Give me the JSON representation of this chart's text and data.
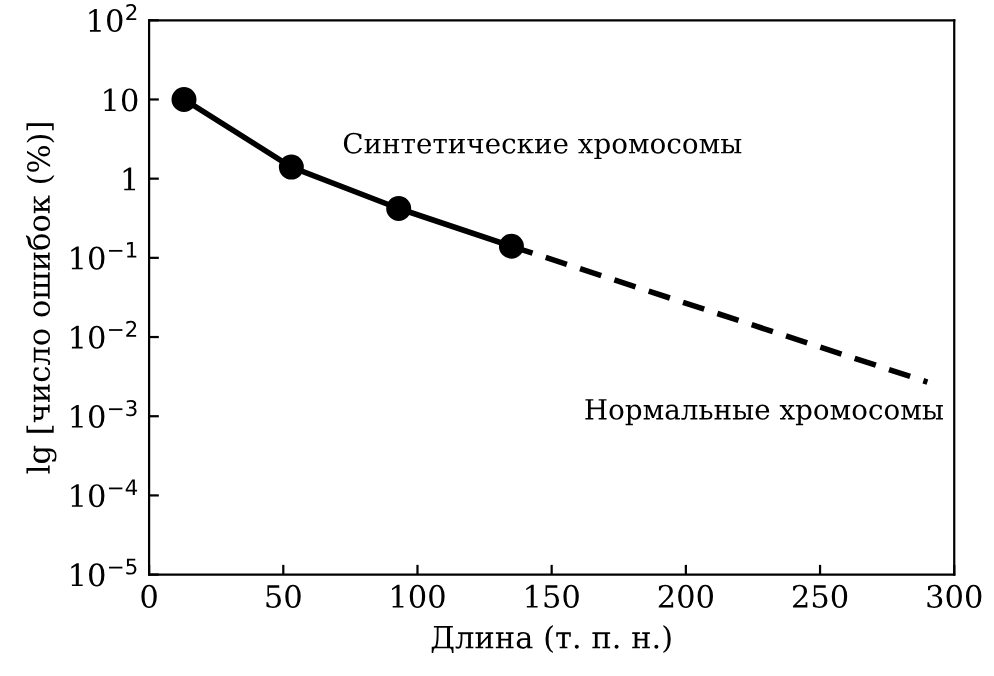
{
  "chart_data": {
    "type": "line",
    "xlabel": "Длина (т. п. н.)",
    "ylabel": "lg [число ошибок (%)]",
    "log": "y",
    "xlim": [
      0,
      300
    ],
    "xticks": [
      0,
      50,
      100,
      150,
      200,
      250,
      300
    ],
    "ylim": [
      1e-05,
      100
    ],
    "yticks": [
      {
        "value": 1e-05,
        "label": "10$^{−5}$"
      },
      {
        "value": 0.0001,
        "label": "10$^{−4}$"
      },
      {
        "value": 0.001,
        "label": "10$^{−3}$"
      },
      {
        "value": 0.01,
        "label": "10$^{−2}$"
      },
      {
        "value": 0.1,
        "label": "10$^{−1}$"
      },
      {
        "value": 1,
        "label": "1"
      },
      {
        "value": 10,
        "label": "10"
      },
      {
        "value": 100,
        "label": "10$^{2}$"
      }
    ],
    "grid": false,
    "series": [
      {
        "color": "#000000",
        "marker": "circle",
        "line_style": "solid",
        "x": [
          13,
          53,
          93,
          135
        ],
        "values": [
          10,
          1.4,
          0.42,
          0.14
        ]
      },
      {
        "color": "#000000",
        "marker": "none",
        "line_style": "dashed",
        "x": [
          135,
          290
        ],
        "values": [
          0.14,
          0.0027
        ]
      }
    ],
    "annotations": [
      "Синтетические хромосомы",
      "Нормальные хромосомы"
    ]
  }
}
